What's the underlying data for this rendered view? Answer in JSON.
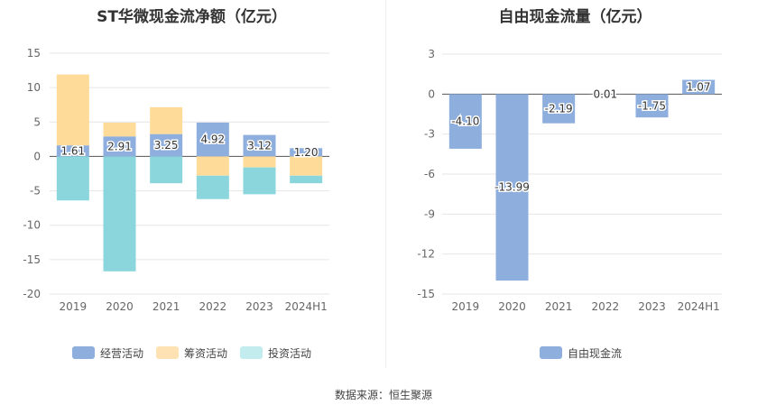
{
  "source_text": "数据来源：恒生聚源",
  "colors": {
    "operating": "#8eaedd",
    "financing": "#ffdb9a",
    "investing": "#8ad6dc",
    "free_cash_flow": "#8eaedd",
    "grid": "#e6e6e6",
    "axis_text": "#666666"
  },
  "chart_data": [
    {
      "type": "bar",
      "stacked": true,
      "title": "ST华微现金流净额（亿元）",
      "categories": [
        "2019",
        "2020",
        "2021",
        "2022",
        "2023",
        "2024H1"
      ],
      "ylim": [
        -20,
        15
      ],
      "yticks": [
        15,
        10,
        5,
        0,
        -5,
        -10,
        -15,
        -20
      ],
      "grid": true,
      "legend_position": "bottom",
      "series": [
        {
          "name": "经营活动",
          "values": [
            1.61,
            2.91,
            3.25,
            4.92,
            3.12,
            1.2
          ],
          "labels": [
            "1.61",
            "2.91",
            "3.25",
            "4.92",
            "3.12",
            "1.20"
          ]
        },
        {
          "name": "筹资活动",
          "values": [
            10.3,
            2.0,
            3.9,
            -2.8,
            -1.6,
            -2.8
          ]
        },
        {
          "name": "投资活动",
          "values": [
            -6.4,
            -16.7,
            -3.9,
            -3.4,
            -3.9,
            -1.1
          ]
        }
      ]
    },
    {
      "type": "bar",
      "title": "自由现金流量（亿元）",
      "categories": [
        "2019",
        "2020",
        "2021",
        "2022",
        "2023",
        "2024H1"
      ],
      "ylim": [
        -15,
        3
      ],
      "yticks": [
        3,
        0,
        -3,
        -6,
        -9,
        -12,
        -15
      ],
      "grid": true,
      "legend_position": "bottom",
      "series": [
        {
          "name": "自由现金流",
          "values": [
            -4.1,
            -13.99,
            -2.19,
            0.01,
            -1.75,
            1.07
          ],
          "labels": [
            "-4.10",
            "-13.99",
            "-2.19",
            "0.01",
            "-1.75",
            "1.07"
          ]
        }
      ]
    }
  ]
}
